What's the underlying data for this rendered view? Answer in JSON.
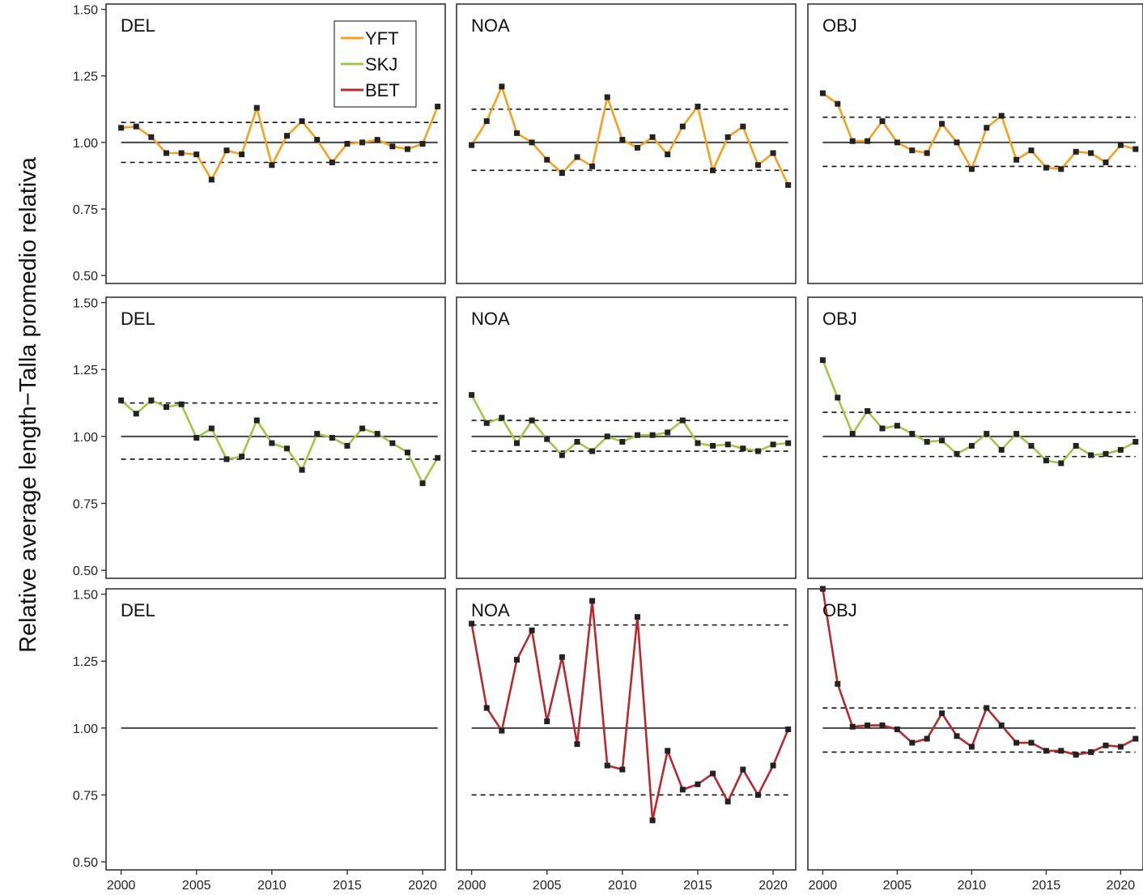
{
  "chart_data": {
    "type": "line",
    "ylabel": "Relative average length−Talla promedio relativa",
    "xlabel": "",
    "x": [
      2000,
      2001,
      2002,
      2003,
      2004,
      2005,
      2006,
      2007,
      2008,
      2009,
      2010,
      2011,
      2012,
      2013,
      2014,
      2015,
      2016,
      2017,
      2018,
      2019,
      2020,
      2021
    ],
    "xlim": [
      1999,
      2021.5
    ],
    "xticks": [
      2000,
      2005,
      2010,
      2015,
      2020
    ],
    "ylim": [
      0.47,
      1.52
    ],
    "yticks": [
      "0.50",
      "0.75",
      "1.00",
      "1.25",
      "1.50"
    ],
    "reference_line": 1.0,
    "legend": {
      "placement": "top-right of first panel",
      "entries": [
        {
          "name": "YFT",
          "color": "#F5A11E"
        },
        {
          "name": "SKJ",
          "color": "#9DC945"
        },
        {
          "name": "BET",
          "color": "#B52A2F"
        }
      ]
    },
    "panels": [
      {
        "row": 0,
        "col": 0,
        "label": "DEL",
        "series": "YFT",
        "color": "#F5A11E",
        "values": [
          1.055,
          1.06,
          1.02,
          0.96,
          0.96,
          0.955,
          0.86,
          0.97,
          0.955,
          1.13,
          0.915,
          1.025,
          1.08,
          1.01,
          0.925,
          0.995,
          1.0,
          1.01,
          0.985,
          0.975,
          0.995,
          1.135
        ],
        "upper": 1.075,
        "lower": 0.925
      },
      {
        "row": 0,
        "col": 1,
        "label": "NOA",
        "series": "YFT",
        "color": "#F5A11E",
        "values": [
          0.99,
          1.08,
          1.21,
          1.035,
          1.0,
          0.935,
          0.885,
          0.945,
          0.91,
          1.17,
          1.01,
          0.98,
          1.02,
          0.955,
          1.06,
          1.135,
          0.895,
          1.02,
          1.06,
          0.915,
          0.96,
          0.84
        ],
        "upper": 1.125,
        "lower": 0.895
      },
      {
        "row": 0,
        "col": 2,
        "label": "OBJ",
        "series": "YFT",
        "color": "#F5A11E",
        "values": [
          1.185,
          1.145,
          1.005,
          1.005,
          1.08,
          1.0,
          0.97,
          0.96,
          1.07,
          1.0,
          0.9,
          1.055,
          1.1,
          0.935,
          0.97,
          0.905,
          0.9,
          0.965,
          0.96,
          0.925,
          0.99,
          0.975
        ],
        "upper": 1.095,
        "lower": 0.91
      },
      {
        "row": 1,
        "col": 0,
        "label": "DEL",
        "series": "SKJ",
        "color": "#9DC945",
        "values": [
          1.135,
          1.085,
          1.135,
          1.11,
          1.12,
          0.995,
          1.03,
          0.915,
          0.925,
          1.06,
          0.975,
          0.955,
          0.875,
          1.01,
          0.995,
          0.965,
          1.03,
          1.01,
          0.975,
          0.94,
          0.825,
          0.92
        ],
        "upper": 1.125,
        "lower": 0.915
      },
      {
        "row": 1,
        "col": 1,
        "label": "NOA",
        "series": "SKJ",
        "color": "#9DC945",
        "values": [
          1.155,
          1.05,
          1.07,
          0.975,
          1.06,
          0.99,
          0.93,
          0.98,
          0.945,
          1.0,
          0.98,
          1.005,
          1.005,
          1.015,
          1.06,
          0.975,
          0.965,
          0.97,
          0.955,
          0.945,
          0.97,
          0.975
        ],
        "upper": 1.06,
        "lower": 0.945
      },
      {
        "row": 1,
        "col": 2,
        "label": "OBJ",
        "series": "SKJ",
        "color": "#9DC945",
        "values": [
          1.285,
          1.145,
          1.01,
          1.095,
          1.03,
          1.04,
          1.01,
          0.98,
          0.985,
          0.935,
          0.965,
          1.01,
          0.95,
          1.01,
          0.965,
          0.91,
          0.9,
          0.965,
          0.93,
          0.935,
          0.95,
          0.98
        ],
        "upper": 1.09,
        "lower": 0.925
      },
      {
        "row": 2,
        "col": 0,
        "label": "DEL",
        "series": "BET",
        "color": "#B52A2F",
        "values": [],
        "upper": null,
        "lower": null
      },
      {
        "row": 2,
        "col": 1,
        "label": "NOA",
        "series": "BET",
        "color": "#B52A2F",
        "values": [
          1.39,
          1.075,
          0.99,
          1.255,
          1.365,
          1.025,
          1.265,
          0.94,
          1.475,
          0.86,
          0.845,
          1.415,
          0.655,
          0.915,
          0.77,
          0.79,
          0.83,
          0.725,
          0.845,
          0.75,
          0.86,
          0.995
        ],
        "upper": 1.385,
        "lower": 0.75
      },
      {
        "row": 2,
        "col": 2,
        "label": "OBJ",
        "series": "BET",
        "color": "#B52A2F",
        "values": [
          1.52,
          1.165,
          1.005,
          1.01,
          1.01,
          0.995,
          0.945,
          0.96,
          1.055,
          0.97,
          0.93,
          1.075,
          1.01,
          0.945,
          0.945,
          0.915,
          0.915,
          0.9,
          0.91,
          0.935,
          0.93,
          0.96
        ],
        "upper": 1.075,
        "lower": 0.91
      }
    ]
  }
}
